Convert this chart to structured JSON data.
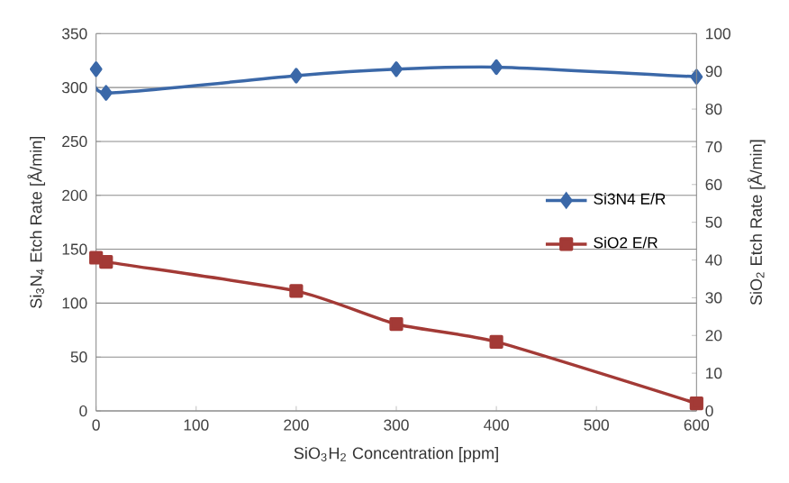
{
  "chart_data": {
    "type": "line",
    "xlabel": "SiO$_{3}$H$_{2}$ Concentration [ppm]",
    "ylabel": "Si$_{3}$N$_{4}$ Etch Rate [Å/min]",
    "y2label": "SiO$_{2}$ Etch Rate [Å/min]",
    "x": [
      0,
      10,
      200,
      300,
      400,
      600
    ],
    "series": [
      {
        "name": "Si3N4 E/R",
        "color": "#3b68a8",
        "marker": "diamond",
        "values": [
          317,
          295,
          311,
          317,
          319,
          310
        ]
      },
      {
        "name": "SiO2 E/R",
        "color": "#a33a36",
        "marker": "square",
        "axis": "y2",
        "values": [
          40.6,
          39.5,
          31.8,
          23,
          18.3,
          2
        ]
      }
    ],
    "xlim": [
      0,
      600
    ],
    "xticks": [
      0,
      100,
      200,
      300,
      400,
      500,
      600
    ],
    "ylim": [
      0,
      350
    ],
    "yticks": [
      0,
      50,
      100,
      150,
      200,
      250,
      300,
      350
    ],
    "y2lim": [
      0,
      100
    ],
    "y2ticks": [
      0,
      10,
      20,
      30,
      40,
      50,
      60,
      70,
      80,
      90,
      100
    ],
    "grid": "y",
    "legend": "right"
  }
}
